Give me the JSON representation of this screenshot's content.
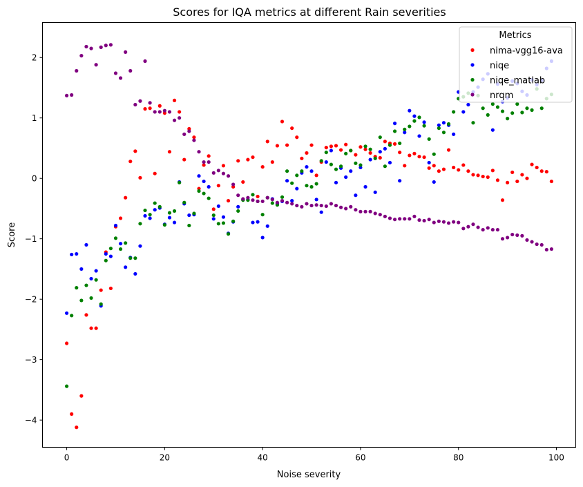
{
  "chart_data": {
    "type": "scatter",
    "title": "Scores for IQA metrics at different Rain severities",
    "xlabel": "Noise severity",
    "ylabel": "Score",
    "xlim": [
      -4.95,
      103.95
    ],
    "ylim": [
      -4.45,
      2.58
    ],
    "xticks": [
      0,
      20,
      40,
      60,
      80,
      100
    ],
    "yticks": [
      -4,
      -3,
      -2,
      -1,
      0,
      1,
      2
    ],
    "xtick_labels": [
      "0",
      "20",
      "40",
      "60",
      "80",
      "100"
    ],
    "ytick_labels": [
      "−4",
      "−3",
      "−2",
      "−1",
      "0",
      "1",
      "2"
    ],
    "grid": false,
    "legend": {
      "title": "Metrics",
      "placement": "top-right"
    },
    "series": [
      {
        "name": "nima-vgg16-ava",
        "color": "#ff0000",
        "x": [
          0,
          1,
          2,
          3,
          4,
          5,
          6,
          7,
          8,
          9,
          10,
          11,
          12,
          13,
          14,
          15,
          16,
          17,
          18,
          19,
          20,
          21,
          22,
          23,
          24,
          25,
          26,
          27,
          28,
          29,
          30,
          31,
          32,
          33,
          34,
          35,
          36,
          37,
          38,
          39,
          40,
          41,
          42,
          43,
          44,
          45,
          46,
          47,
          48,
          49,
          50,
          51,
          52,
          53,
          54,
          55,
          56,
          57,
          58,
          59,
          60,
          61,
          62,
          63,
          64,
          65,
          66,
          67,
          68,
          69,
          70,
          71,
          72,
          73,
          74,
          75,
          76,
          77,
          78,
          79,
          80,
          81,
          82,
          83,
          84,
          85,
          86,
          87,
          88,
          89,
          90,
          91,
          92,
          93,
          94,
          95,
          96,
          97,
          98,
          99
        ],
        "y": [
          -2.73,
          -3.9,
          -4.12,
          -3.6,
          -2.26,
          -2.48,
          -2.48,
          -1.85,
          -1.22,
          -1.82,
          -0.8,
          -0.66,
          -0.32,
          0.28,
          0.45,
          0.01,
          1.15,
          1.16,
          0.08,
          1.2,
          1.08,
          0.44,
          1.29,
          1.1,
          0.31,
          0.82,
          0.68,
          -0.17,
          0.22,
          0.37,
          -0.51,
          -0.12,
          0.21,
          -0.37,
          -0.14,
          0.29,
          -0.06,
          0.31,
          0.35,
          -0.3,
          0.19,
          0.61,
          0.27,
          0.54,
          0.94,
          0.55,
          0.83,
          0.68,
          0.33,
          0.42,
          0.55,
          0.05,
          0.27,
          0.51,
          0.53,
          0.54,
          0.47,
          0.56,
          0.46,
          0.39,
          0.52,
          0.48,
          0.42,
          0.36,
          0.34,
          0.61,
          0.58,
          0.57,
          0.43,
          0.21,
          0.38,
          0.41,
          0.36,
          0.35,
          0.17,
          0.21,
          0.12,
          0.15,
          0.47,
          0.18,
          0.14,
          0.22,
          0.12,
          0.06,
          0.05,
          0.03,
          0.02,
          0.13,
          -0.03,
          -0.36,
          -0.07,
          0.1,
          -0.05,
          0.06,
          0.0,
          0.23,
          0.18,
          0.12,
          0.11,
          -0.05
        ]
      },
      {
        "name": "niqe",
        "color": "#0000ff",
        "x": [
          0,
          1,
          2,
          3,
          4,
          5,
          6,
          7,
          8,
          9,
          10,
          11,
          12,
          13,
          14,
          15,
          16,
          17,
          18,
          19,
          20,
          21,
          22,
          23,
          24,
          25,
          26,
          27,
          28,
          29,
          30,
          31,
          32,
          33,
          34,
          35,
          36,
          37,
          38,
          39,
          40,
          41,
          42,
          43,
          44,
          45,
          46,
          47,
          48,
          49,
          50,
          51,
          52,
          53,
          54,
          55,
          56,
          57,
          58,
          59,
          60,
          61,
          62,
          63,
          64,
          65,
          66,
          67,
          68,
          69,
          70,
          71,
          72,
          73,
          74,
          75,
          76,
          77,
          78,
          79,
          80,
          81,
          82,
          83,
          84,
          85,
          86,
          87,
          88,
          89,
          90,
          91,
          92,
          93,
          94,
          95,
          96,
          97,
          98,
          99
        ],
        "y": [
          -2.23,
          -1.26,
          -1.25,
          -1.5,
          -1.1,
          -1.66,
          -1.53,
          -2.11,
          -1.25,
          -1.29,
          -0.78,
          -1.08,
          -1.47,
          -1.31,
          -1.58,
          -1.12,
          -0.62,
          -0.66,
          -0.52,
          -0.49,
          -0.76,
          -0.65,
          -0.73,
          -0.06,
          -0.42,
          -0.61,
          -0.6,
          0.04,
          -0.05,
          -0.14,
          -0.67,
          -0.46,
          -0.64,
          -0.91,
          -0.72,
          -0.47,
          -0.35,
          -0.35,
          -0.73,
          -0.72,
          -0.98,
          -0.79,
          -0.34,
          -0.42,
          -0.38,
          -0.04,
          -0.37,
          -0.17,
          0.09,
          0.19,
          0.12,
          -0.35,
          -0.56,
          0.27,
          0.46,
          -0.07,
          0.17,
          0.02,
          0.12,
          -0.28,
          0.18,
          -0.14,
          0.31,
          -0.23,
          0.44,
          0.49,
          0.26,
          0.91,
          -0.04,
          0.76,
          1.12,
          1.03,
          0.7,
          0.93,
          0.26,
          -0.06,
          0.88,
          0.92,
          0.88,
          0.73,
          1.43,
          1.1,
          1.22,
          1.43,
          1.51,
          1.64,
          1.73,
          0.8,
          1.56,
          1.27,
          1.33,
          1.61,
          1.57,
          1.44,
          1.38,
          1.63,
          1.55,
          1.62,
          1.82,
          1.94
        ]
      },
      {
        "name": "niqe_matlab",
        "color": "#008000",
        "x": [
          0,
          1,
          2,
          3,
          4,
          5,
          6,
          7,
          8,
          9,
          10,
          11,
          12,
          13,
          14,
          15,
          16,
          17,
          18,
          19,
          20,
          21,
          22,
          23,
          24,
          25,
          26,
          27,
          28,
          29,
          30,
          31,
          32,
          33,
          34,
          35,
          36,
          37,
          38,
          39,
          40,
          41,
          42,
          43,
          44,
          45,
          46,
          47,
          48,
          49,
          50,
          51,
          52,
          53,
          54,
          55,
          56,
          57,
          58,
          59,
          60,
          61,
          62,
          63,
          64,
          65,
          66,
          67,
          68,
          69,
          70,
          71,
          72,
          73,
          74,
          75,
          76,
          77,
          78,
          79,
          80,
          81,
          82,
          83,
          84,
          85,
          86,
          87,
          88,
          89,
          90,
          91,
          92,
          93,
          94,
          95,
          96,
          97,
          98,
          99
        ],
        "y": [
          -3.44,
          -2.27,
          -1.81,
          -2.02,
          -1.77,
          -1.98,
          -1.68,
          -2.08,
          -1.36,
          -1.16,
          -0.99,
          -1.17,
          -1.07,
          -1.32,
          -1.32,
          -0.75,
          -0.53,
          -0.6,
          -0.41,
          -0.47,
          -0.77,
          -0.57,
          -0.54,
          -0.07,
          -0.4,
          -0.78,
          -0.58,
          -0.21,
          -0.25,
          -0.33,
          -0.61,
          -0.75,
          -0.74,
          -0.92,
          -0.71,
          -0.54,
          -0.36,
          -0.36,
          -0.27,
          -0.38,
          -0.6,
          -0.32,
          -0.41,
          -0.44,
          -0.31,
          0.12,
          -0.08,
          0.05,
          0.12,
          -0.12,
          -0.14,
          -0.09,
          0.29,
          0.43,
          0.23,
          0.15,
          0.2,
          0.41,
          0.46,
          0.25,
          0.22,
          0.53,
          0.48,
          0.33,
          0.68,
          0.2,
          0.55,
          0.78,
          0.58,
          0.81,
          0.86,
          0.95,
          1.01,
          0.87,
          0.65,
          0.4,
          0.83,
          0.76,
          0.9,
          1.1,
          1.32,
          1.35,
          1.41,
          0.92,
          1.37,
          1.16,
          1.05,
          1.23,
          1.18,
          1.11,
          0.99,
          1.08,
          1.23,
          1.09,
          1.16,
          1.13,
          1.48,
          1.16,
          1.32,
          1.39
        ]
      },
      {
        "name": "nrqm",
        "color": "#800080",
        "x": [
          0,
          1,
          2,
          3,
          4,
          5,
          6,
          7,
          8,
          9,
          10,
          11,
          12,
          13,
          14,
          15,
          16,
          17,
          18,
          19,
          20,
          21,
          22,
          23,
          24,
          25,
          26,
          27,
          28,
          29,
          30,
          31,
          32,
          33,
          34,
          35,
          36,
          37,
          38,
          39,
          40,
          41,
          42,
          43,
          44,
          45,
          46,
          47,
          48,
          49,
          50,
          51,
          52,
          53,
          54,
          55,
          56,
          57,
          58,
          59,
          60,
          61,
          62,
          63,
          64,
          65,
          66,
          67,
          68,
          69,
          70,
          71,
          72,
          73,
          74,
          75,
          76,
          77,
          78,
          79,
          80,
          81,
          82,
          83,
          84,
          85,
          86,
          87,
          88,
          89,
          90,
          91,
          92,
          93,
          94,
          95,
          96,
          97,
          98,
          99
        ],
        "y": [
          1.37,
          1.38,
          1.78,
          2.03,
          2.18,
          2.15,
          1.88,
          2.17,
          2.2,
          2.21,
          1.74,
          1.66,
          2.09,
          1.78,
          1.22,
          1.28,
          1.94,
          1.25,
          1.1,
          1.1,
          1.12,
          1.1,
          0.96,
          1.0,
          0.73,
          0.78,
          0.63,
          0.44,
          0.27,
          0.27,
          0.09,
          0.13,
          0.08,
          0.04,
          -0.1,
          -0.28,
          -0.34,
          -0.32,
          -0.36,
          -0.38,
          -0.38,
          -0.32,
          -0.35,
          -0.4,
          -0.37,
          -0.4,
          -0.42,
          -0.45,
          -0.47,
          -0.42,
          -0.45,
          -0.44,
          -0.45,
          -0.46,
          -0.42,
          -0.45,
          -0.48,
          -0.5,
          -0.47,
          -0.52,
          -0.55,
          -0.55,
          -0.55,
          -0.58,
          -0.6,
          -0.63,
          -0.66,
          -0.68,
          -0.67,
          -0.67,
          -0.67,
          -0.63,
          -0.69,
          -0.7,
          -0.68,
          -0.73,
          -0.71,
          -0.72,
          -0.74,
          -0.72,
          -0.73,
          -0.83,
          -0.8,
          -0.76,
          -0.81,
          -0.85,
          -0.82,
          -0.85,
          -0.85,
          -1.0,
          -0.98,
          -0.93,
          -0.94,
          -0.95,
          -1.02,
          -1.05,
          -1.09,
          -1.1,
          -1.18,
          -1.17
        ]
      }
    ]
  }
}
